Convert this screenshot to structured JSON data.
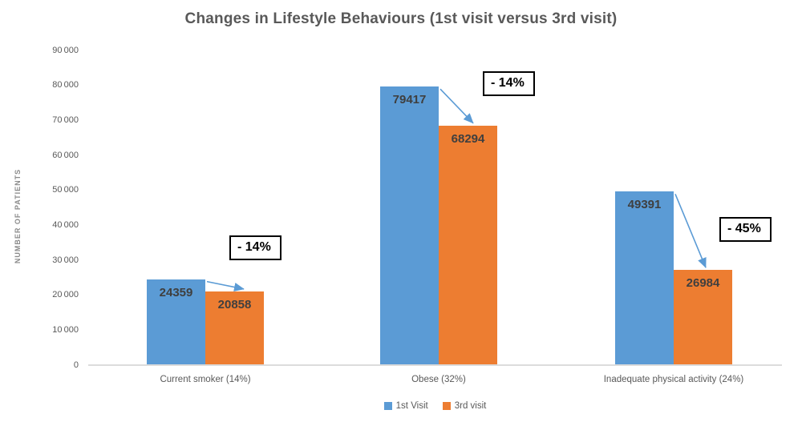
{
  "chart_data": {
    "type": "bar",
    "title": "Changes in Lifestyle Behaviours (1st visit versus 3rd visit)",
    "xlabel": "",
    "ylabel": "NUMBER OF PATIENTS",
    "ylim": [
      0,
      90000
    ],
    "grid": false,
    "legend_position": "bottom",
    "y_ticks": [
      {
        "value": 90000,
        "label": "90 000"
      },
      {
        "value": 80000,
        "label": "80 000"
      },
      {
        "value": 70000,
        "label": "70 000"
      },
      {
        "value": 60000,
        "label": "60 000"
      },
      {
        "value": 50000,
        "label": "50 000"
      },
      {
        "value": 40000,
        "label": "40 000"
      },
      {
        "value": 30000,
        "label": "30 000"
      },
      {
        "value": 20000,
        "label": "20 000"
      },
      {
        "value": 10000,
        "label": "10 000"
      },
      {
        "value": 0,
        "label": "0"
      }
    ],
    "categories": [
      "Current smoker (14%)",
      "Obese (32%)",
      "Inadequate physical activity (24%)"
    ],
    "series": [
      {
        "name": "1st Visit",
        "color": "#5B9BD5",
        "values": [
          24359,
          79417,
          49391
        ]
      },
      {
        "name": "3rd visit",
        "color": "#ED7D31",
        "values": [
          20858,
          68294,
          26984
        ]
      }
    ],
    "annotations": [
      {
        "category_index": 0,
        "text": "- 14%"
      },
      {
        "category_index": 1,
        "text": "- 14%"
      },
      {
        "category_index": 2,
        "text": "- 45%"
      }
    ]
  },
  "colors": {
    "title_text": "#595959",
    "tick_text": "#595959",
    "data_label_text": "#3F3F3F",
    "axis_line": "#DCDCDC",
    "arrow": "#5B9BD5",
    "annotation_border": "#000000",
    "background": "#FFFFFF"
  }
}
